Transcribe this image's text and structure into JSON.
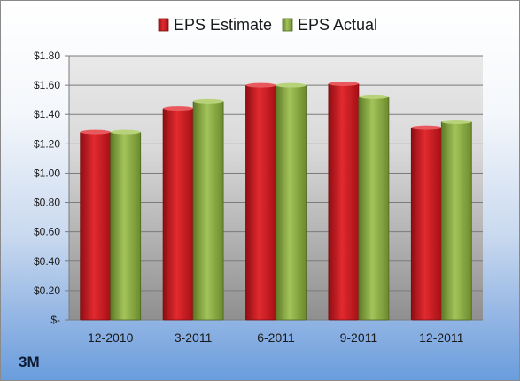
{
  "company": "3M",
  "colors": {
    "estimate": "#c8161d",
    "actual": "#8aab3f"
  },
  "chart_data": {
    "type": "bar",
    "categories": [
      "12-2010",
      "3-2011",
      "6-2011",
      "9-2011",
      "12-2011"
    ],
    "series": [
      {
        "name": "EPS Estimate",
        "values": [
          1.28,
          1.44,
          1.6,
          1.61,
          1.31
        ]
      },
      {
        "name": "EPS Actual",
        "values": [
          1.28,
          1.49,
          1.6,
          1.52,
          1.35
        ]
      }
    ],
    "yticks": [
      "$-",
      "$0.20",
      "$0.40",
      "$0.60",
      "$0.80",
      "$1.00",
      "$1.20",
      "$1.40",
      "$1.60",
      "$1.80"
    ],
    "ylim": [
      0,
      1.8
    ],
    "grid": true,
    "legend": "top-center"
  }
}
